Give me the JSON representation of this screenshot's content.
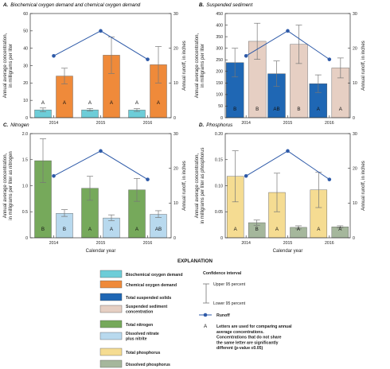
{
  "chart_data": [
    {
      "type": "bar",
      "panel_letter": "A.",
      "title": "Biochemical oxygen demand and chemical oxygen demand",
      "categories": [
        "2014",
        "2015",
        "2016"
      ],
      "xlabel": "",
      "ylabel": "Annual average concentration, in milligrams per liter",
      "ylabel_lines": [
        "Annual average concentration,",
        "in milligrams per liter"
      ],
      "ylim": [
        0,
        60
      ],
      "yticks": [
        "0",
        "10",
        "20",
        "30",
        "40",
        "50",
        "60"
      ],
      "y2label": "Annual runoff, in inches",
      "y2lim": [
        0,
        30
      ],
      "y2ticks": [
        "0",
        "10",
        "20",
        "30"
      ],
      "series": [
        {
          "name": "Biochemical oxygen demand",
          "color": "#6dcdd8",
          "values": [
            4.5,
            4.5,
            4.4
          ],
          "ci_upper": [
            5.6,
            5.3,
            5.2
          ],
          "ci_lower": [
            3.5,
            3.8,
            3.6
          ],
          "letters": [
            "A",
            "A",
            "A"
          ]
        },
        {
          "name": "Chemical oxygen demand",
          "color": "#ef8a3a",
          "values": [
            24.0,
            36.0,
            30.5
          ],
          "ci_upper": [
            28.5,
            46.5,
            41.0
          ],
          "ci_lower": [
            19.5,
            25.5,
            20.0
          ],
          "letters": [
            "A",
            "A",
            "A"
          ]
        }
      ],
      "runoff": [
        17.8,
        25.0,
        16.8
      ]
    },
    {
      "type": "bar",
      "panel_letter": "B.",
      "title": "Suspended sediment",
      "categories": [
        "2014",
        "2015",
        "2016"
      ],
      "xlabel": "",
      "ylabel": "Annual average concentration, in milligrams per liter",
      "ylabel_lines": [
        "Annual average concentration,",
        "in milligrams per liter"
      ],
      "ylim": [
        0,
        450
      ],
      "yticks": [
        "0",
        "50",
        "100",
        "150",
        "200",
        "250",
        "300",
        "350",
        "400",
        "450"
      ],
      "y2label": "Annual runoff, in inches",
      "y2lim": [
        0,
        30
      ],
      "y2ticks": [
        "0",
        "10",
        "20",
        "30"
      ],
      "series": [
        {
          "name": "Total suspended solids",
          "color": "#1f67b4",
          "values": [
            238,
            190,
            147
          ],
          "ci_upper": [
            300,
            245,
            185
          ],
          "ci_lower": [
            176,
            135,
            109
          ],
          "letters": [
            "B",
            "AB",
            "A"
          ]
        },
        {
          "name": "Suspended sediment concentration",
          "color": "#e6cfc3",
          "values": [
            330,
            317,
            215
          ],
          "ci_upper": [
            408,
            400,
            258
          ],
          "ci_lower": [
            252,
            234,
            172
          ],
          "letters": [
            "B",
            "B",
            "A"
          ]
        }
      ],
      "runoff": [
        17.8,
        25.0,
        16.8
      ]
    },
    {
      "type": "bar",
      "panel_letter": "C.",
      "title": "Nitrogen",
      "categories": [
        "2014",
        "2015",
        "2016"
      ],
      "xlabel": "Calendar year",
      "ylabel": "Annual average concentration, in milligrams per liter as nitrogen",
      "ylabel_lines": [
        "Annual average concentration,",
        "in milligrams per liter as nitrogen"
      ],
      "ylim": [
        0,
        2.0
      ],
      "yticks": [
        "0",
        "0.5",
        "1.0",
        "1.5",
        "2.0"
      ],
      "y2label": "Annual runoff, in inches",
      "y2lim": [
        0,
        30
      ],
      "y2ticks": [
        "0",
        "10",
        "20",
        "30"
      ],
      "series": [
        {
          "name": "Total nitrogen",
          "color": "#76a95b",
          "values": [
            1.48,
            0.95,
            0.92
          ],
          "ci_upper": [
            1.9,
            1.18,
            1.14
          ],
          "ci_lower": [
            1.06,
            0.72,
            0.7
          ],
          "letters": [
            "B",
            "A",
            "A"
          ]
        },
        {
          "name": "Dissolved nitrate plus nitrite",
          "color": "#b8d9ee",
          "values": [
            0.47,
            0.38,
            0.45
          ],
          "ci_upper": [
            0.54,
            0.44,
            0.52
          ],
          "ci_lower": [
            0.41,
            0.33,
            0.39
          ],
          "letters": [
            "B",
            "A",
            "AB"
          ]
        }
      ],
      "runoff": [
        17.8,
        25.0,
        16.8
      ]
    },
    {
      "type": "bar",
      "panel_letter": "D.",
      "title": "Phosphorus",
      "categories": [
        "2014",
        "2015",
        "2016"
      ],
      "xlabel": "Calendar year",
      "ylabel": "Annual average concentration, in milligrams per liter as phosphorus",
      "ylabel_lines": [
        "Annual average concentration,",
        "in milligrams per liter as phosphorus"
      ],
      "ylim": [
        0,
        0.2
      ],
      "yticks": [
        "0",
        "0.05",
        "0.10",
        "0.15",
        "0.20"
      ],
      "y2label": "Annual runoff, in inches",
      "y2lim": [
        0,
        30
      ],
      "y2ticks": [
        "0",
        "10",
        "20",
        "30"
      ],
      "series": [
        {
          "name": "Total phosphorus",
          "color": "#f5dc92",
          "values": [
            0.118,
            0.087,
            0.092
          ],
          "ci_upper": [
            0.167,
            0.124,
            0.126
          ],
          "ci_lower": [
            0.069,
            0.05,
            0.058
          ],
          "letters": [
            "A",
            "A",
            "A"
          ]
        },
        {
          "name": "Dissolved phosphorus",
          "color": "#a5b79c",
          "values": [
            0.029,
            0.02,
            0.021
          ],
          "ci_upper": [
            0.034,
            0.023,
            0.023
          ],
          "ci_lower": [
            0.024,
            0.017,
            0.019
          ],
          "letters": [
            "B",
            "A",
            "A"
          ]
        }
      ],
      "runoff": [
        17.8,
        25.0,
        16.8
      ]
    }
  ],
  "legend": {
    "heading": "EXPLANATION",
    "items": [
      {
        "label": "Biochemical oxygen demand",
        "color": "#6dcdd8"
      },
      {
        "label": "Chemical oxygen demand",
        "color": "#ef8a3a"
      },
      {
        "label": "Total suspended solids",
        "color": "#1f67b4"
      },
      {
        "label": "Suspended sediment concentration",
        "color": "#e6cfc3"
      },
      {
        "label": "Total nitrogen",
        "color": "#76a95b"
      },
      {
        "label": "Dissolved nitrate plus nitrite",
        "color": "#b8d9ee"
      },
      {
        "label": "Total phosphorus",
        "color": "#f5dc92"
      },
      {
        "label": "Dissolved phosphorus",
        "color": "#a5b79c"
      }
    ],
    "ci_heading": "Confidence interval",
    "ci_upper": "Upper 95 percent",
    "ci_lower": "Lower 95 percent",
    "runoff_label": "Runoff",
    "letters_symbol": "A",
    "letters_note": "Letters are used for comparing annual average concentrations. Concentrations that do not share the same letter are significantly different (p-value ≤0.05)"
  }
}
